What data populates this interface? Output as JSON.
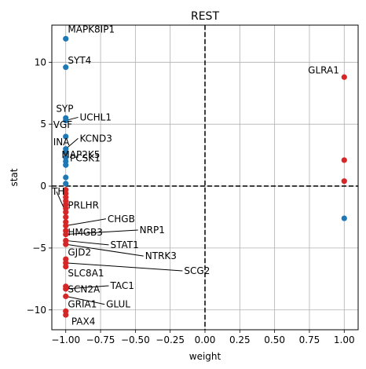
{
  "chart_data": {
    "type": "scatter",
    "title": "REST",
    "xlabel": "weight",
    "ylabel": "stat",
    "xlim": [
      -1.1,
      1.1
    ],
    "ylim": [
      -11.6,
      13.0
    ],
    "xticks": [
      -1.0,
      -0.75,
      -0.5,
      -0.25,
      0.0,
      0.25,
      0.5,
      0.75,
      1.0
    ],
    "xtick_labels": [
      "−1.00",
      "−0.75",
      "−0.50",
      "−0.25",
      "0.00",
      "0.25",
      "0.50",
      "0.75",
      "1.00"
    ],
    "yticks": [
      -10,
      -5,
      0,
      5,
      10
    ],
    "ytick_labels": [
      "−10",
      "−5",
      "0",
      "5",
      "10"
    ],
    "grid": true,
    "reference_lines": {
      "x": 0,
      "y": 0
    },
    "colors": {
      "positive": "#1f77b4",
      "negative": "#d62728"
    },
    "points": [
      {
        "x": -1.0,
        "y": 11.9,
        "color": "#1f77b4"
      },
      {
        "x": -1.0,
        "y": 9.6,
        "color": "#1f77b4"
      },
      {
        "x": -1.0,
        "y": 5.5,
        "color": "#1f77b4"
      },
      {
        "x": -1.0,
        "y": 5.3,
        "color": "#1f77b4"
      },
      {
        "x": -1.0,
        "y": 4.0,
        "color": "#1f77b4"
      },
      {
        "x": -1.0,
        "y": 3.0,
        "color": "#1f77b4"
      },
      {
        "x": -1.0,
        "y": 2.7,
        "color": "#1f77b4"
      },
      {
        "x": -1.0,
        "y": 2.3,
        "color": "#1f77b4"
      },
      {
        "x": -1.0,
        "y": 2.0,
        "color": "#1f77b4"
      },
      {
        "x": -1.0,
        "y": 1.7,
        "color": "#1f77b4"
      },
      {
        "x": -1.0,
        "y": 0.7,
        "color": "#1f77b4"
      },
      {
        "x": -1.0,
        "y": 0.2,
        "color": "#1f77b4"
      },
      {
        "x": -1.0,
        "y": -0.3,
        "color": "#d62728"
      },
      {
        "x": -1.0,
        "y": -0.6,
        "color": "#d62728"
      },
      {
        "x": -1.0,
        "y": -0.9,
        "color": "#d62728"
      },
      {
        "x": -1.0,
        "y": -1.2,
        "color": "#d62728"
      },
      {
        "x": -1.0,
        "y": -1.5,
        "color": "#d62728"
      },
      {
        "x": -1.0,
        "y": -1.8,
        "color": "#d62728"
      },
      {
        "x": -1.0,
        "y": -2.1,
        "color": "#d62728"
      },
      {
        "x": -1.0,
        "y": -2.5,
        "color": "#d62728"
      },
      {
        "x": -1.0,
        "y": -2.9,
        "color": "#d62728"
      },
      {
        "x": -1.0,
        "y": -3.2,
        "color": "#d62728"
      },
      {
        "x": -1.0,
        "y": -3.6,
        "color": "#d62728"
      },
      {
        "x": -1.0,
        "y": -3.9,
        "color": "#d62728"
      },
      {
        "x": -1.0,
        "y": -4.4,
        "color": "#d62728"
      },
      {
        "x": -1.0,
        "y": -4.7,
        "color": "#d62728"
      },
      {
        "x": -1.0,
        "y": -5.9,
        "color": "#d62728"
      },
      {
        "x": -1.0,
        "y": -6.2,
        "color": "#d62728"
      },
      {
        "x": -1.0,
        "y": -6.5,
        "color": "#d62728"
      },
      {
        "x": -1.0,
        "y": -8.1,
        "color": "#d62728"
      },
      {
        "x": -1.0,
        "y": -8.3,
        "color": "#d62728"
      },
      {
        "x": -1.0,
        "y": -8.9,
        "color": "#d62728"
      },
      {
        "x": -1.0,
        "y": -10.1,
        "color": "#d62728"
      },
      {
        "x": -1.0,
        "y": -10.4,
        "color": "#d62728"
      },
      {
        "x": 1.0,
        "y": 8.8,
        "color": "#d62728"
      },
      {
        "x": 1.0,
        "y": 2.1,
        "color": "#d62728"
      },
      {
        "x": 1.0,
        "y": 0.4,
        "color": "#d62728"
      },
      {
        "x": 1.0,
        "y": -2.6,
        "color": "#1f77b4"
      }
    ],
    "labels": [
      {
        "text": "MAPK8IP1",
        "x": -1.0,
        "y": 11.9,
        "tx": -0.985,
        "ty": 12.4,
        "leader": false
      },
      {
        "text": "SYT4",
        "x": -1.0,
        "y": 9.6,
        "tx": -0.985,
        "ty": 9.9,
        "leader": false
      },
      {
        "text": "GLRA1",
        "x": 1.0,
        "y": 8.8,
        "tx": 0.74,
        "ty": 9.1,
        "leader": false
      },
      {
        "text": "SYP",
        "x": -1.0,
        "y": 5.5,
        "tx": -1.07,
        "ty": 6.0,
        "leader": false
      },
      {
        "text": "UCHL1",
        "x": -1.0,
        "y": 5.3,
        "tx": -0.9,
        "ty": 5.3,
        "leader": true
      },
      {
        "text": "VGF",
        "x": -1.0,
        "y": 4.0,
        "tx": -1.09,
        "ty": 4.7,
        "leader": false
      },
      {
        "text": "KCND3",
        "x": -1.0,
        "y": 3.0,
        "tx": -0.9,
        "ty": 3.6,
        "leader": true
      },
      {
        "text": "INA",
        "x": -1.0,
        "y": 2.7,
        "tx": -1.09,
        "ty": 3.3,
        "leader": false
      },
      {
        "text": "MAP2K5",
        "x": -1.0,
        "y": 2.3,
        "tx": -1.03,
        "ty": 2.3,
        "leader": false
      },
      {
        "text": "PCSK1",
        "x": -1.0,
        "y": 2.0,
        "tx": -0.97,
        "ty": 2.0,
        "leader": false
      },
      {
        "text": "TH",
        "x": -1.0,
        "y": -2.1,
        "tx": -1.1,
        "ty": -0.7,
        "leader": true
      },
      {
        "text": "PRLHR",
        "x": -1.0,
        "y": -2.5,
        "tx": -0.985,
        "ty": -1.8,
        "leader": true
      },
      {
        "text": "CHGB",
        "x": -1.0,
        "y": -3.2,
        "tx": -0.7,
        "ty": -2.9,
        "leader": true
      },
      {
        "text": "HMGB3",
        "x": -1.0,
        "y": -3.6,
        "tx": -0.985,
        "ty": -4.0,
        "leader": false
      },
      {
        "text": "NRP1",
        "x": -1.0,
        "y": -3.9,
        "tx": -0.47,
        "ty": -3.8,
        "leader": true
      },
      {
        "text": "STAT1",
        "x": -1.0,
        "y": -4.4,
        "tx": -0.68,
        "ty": -5.0,
        "leader": true
      },
      {
        "text": "NTRK3",
        "x": -1.0,
        "y": -4.7,
        "tx": -0.43,
        "ty": -5.9,
        "leader": true
      },
      {
        "text": "GJD2",
        "x": -1.0,
        "y": -5.9,
        "tx": -0.985,
        "ty": -5.6,
        "leader": false
      },
      {
        "text": "SCG2",
        "x": -1.0,
        "y": -6.2,
        "tx": -0.15,
        "ty": -7.1,
        "leader": true
      },
      {
        "text": "SLC8A1",
        "x": -1.0,
        "y": -8.1,
        "tx": -0.985,
        "ty": -7.3,
        "leader": false
      },
      {
        "text": "TAC1",
        "x": -1.0,
        "y": -8.3,
        "tx": -0.68,
        "ty": -8.3,
        "leader": true
      },
      {
        "text": "SCN2A",
        "x": -1.0,
        "y": -8.9,
        "tx": -0.985,
        "ty": -8.6,
        "leader": false
      },
      {
        "text": "GRIA1",
        "x": -1.0,
        "y": -10.1,
        "tx": -0.985,
        "ty": -9.8,
        "leader": false
      },
      {
        "text": "GLUL",
        "x": -1.0,
        "y": -8.9,
        "tx": -0.71,
        "ty": -9.8,
        "leader": true
      },
      {
        "text": "PAX4",
        "x": -1.0,
        "y": -10.4,
        "tx": -0.96,
        "ty": -11.2,
        "leader": false
      }
    ]
  }
}
